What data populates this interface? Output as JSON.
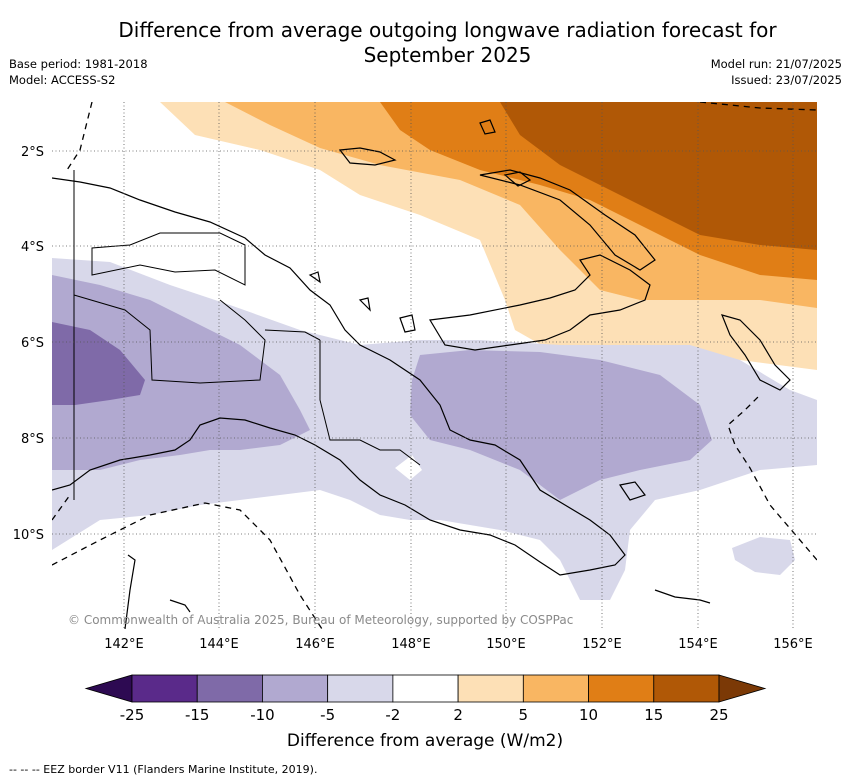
{
  "title_lines": [
    "Difference from average outgoing longwave radiation forecast for",
    "September 2025"
  ],
  "meta_left": [
    "Base period: 1981-2018",
    "Model: ACCESS-S2"
  ],
  "meta_right": [
    "Model run: 21/07/2025",
    "Issued: 23/07/2025"
  ],
  "lat_labels": [
    "2°S",
    "4°S",
    "6°S",
    "8°S",
    "10°S"
  ],
  "lon_labels": [
    "142°E",
    "144°E",
    "146°E",
    "148°E",
    "150°E",
    "152°E",
    "154°E",
    "156°E"
  ],
  "copyright": "© Commonwealth of Australia 2025, Bureau of Meteorology, supported by COSPPac",
  "colorbar": {
    "ticks": [
      "-25",
      "-15",
      "-10",
      "-5",
      "-2",
      "2",
      "5",
      "10",
      "15",
      "25"
    ],
    "colors": [
      "#2d0a52",
      "#5a2a8a",
      "#7f6aa8",
      "#b1a9d0",
      "#d8d8ea",
      "#ffffff",
      "#fde0b6",
      "#f9b662",
      "#e07e16",
      "#b05806",
      "#7b3906"
    ],
    "label": "Difference from average (W/m2)"
  },
  "footnote": "-- -- -- EEZ border V11 (Flanders Marine Institute, 2019)."
}
